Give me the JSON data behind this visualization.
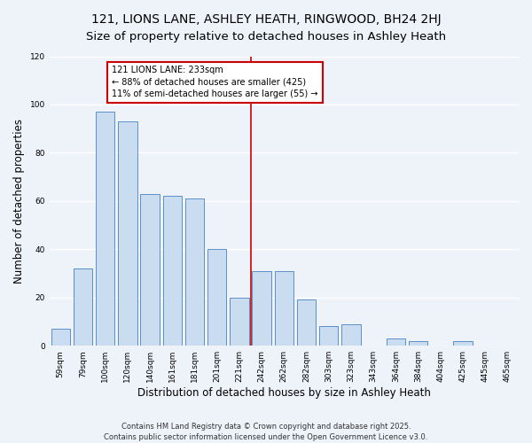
{
  "title": "121, LIONS LANE, ASHLEY HEATH, RINGWOOD, BH24 2HJ",
  "subtitle": "Size of property relative to detached houses in Ashley Heath",
  "xlabel": "Distribution of detached houses by size in Ashley Heath",
  "ylabel": "Number of detached properties",
  "bar_labels": [
    "59sqm",
    "79sqm",
    "100sqm",
    "120sqm",
    "140sqm",
    "161sqm",
    "181sqm",
    "201sqm",
    "221sqm",
    "242sqm",
    "262sqm",
    "282sqm",
    "303sqm",
    "323sqm",
    "343sqm",
    "364sqm",
    "384sqm",
    "404sqm",
    "425sqm",
    "445sqm",
    "465sqm"
  ],
  "bar_values": [
    7,
    32,
    97,
    93,
    63,
    62,
    61,
    40,
    20,
    31,
    31,
    19,
    8,
    9,
    0,
    3,
    2,
    0,
    2,
    0,
    0
  ],
  "bar_color": "#c9dcf0",
  "bar_edge_color": "#5b8fc9",
  "vline_color": "#cc0000",
  "annotation_line1": "121 LIONS LANE: 233sqm",
  "annotation_line2": "← 88% of detached houses are smaller (425)",
  "annotation_line3": "11% of semi-detached houses are larger (55) →",
  "annotation_box_color": "white",
  "annotation_box_edge": "#cc0000",
  "ylim": [
    0,
    120
  ],
  "yticks": [
    0,
    20,
    40,
    60,
    80,
    100,
    120
  ],
  "footer_line1": "Contains HM Land Registry data © Crown copyright and database right 2025.",
  "footer_line2": "Contains public sector information licensed under the Open Government Licence v3.0.",
  "bg_color": "#eef2f9",
  "grid_color": "white",
  "title_fontsize": 10,
  "tick_fontsize": 6.5,
  "label_fontsize": 8.5,
  "annot_fontsize": 7,
  "footer_fontsize": 6
}
